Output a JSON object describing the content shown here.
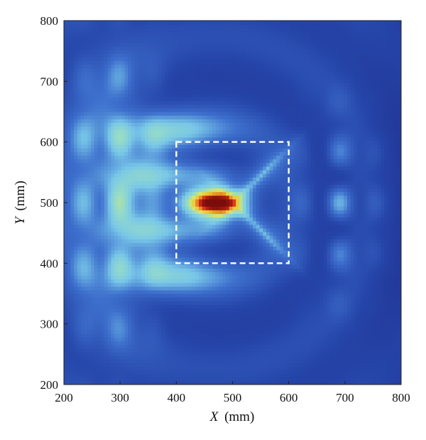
{
  "chart_data": {
    "type": "heatmap",
    "title": "",
    "xlabel_var": "X",
    "xlabel_unit": "(mm)",
    "ylabel_var": "Y",
    "ylabel_unit": "(mm)",
    "xlim": [
      200,
      800
    ],
    "ylim": [
      200,
      800
    ],
    "xticks": [
      200,
      300,
      400,
      500,
      600,
      700,
      800
    ],
    "yticks": [
      200,
      300,
      400,
      500,
      600,
      700,
      800
    ],
    "colormap": "jet",
    "colors": {
      "low": "#1e2f8a",
      "mid_low": "#3d6fc9",
      "mid": "#7ec8e8",
      "mid_high": "#e6e35a",
      "high": "#d51c1c",
      "peak": "#7a0d0d"
    },
    "grid": false,
    "features": {
      "peak": {
        "x": 465,
        "y": 500,
        "level": 1.0
      },
      "left_wave_band": {
        "x_range": [
          215,
          330
        ],
        "y_range": [
          280,
          745
        ]
      },
      "right_wave_cluster": {
        "x_range": [
          630,
          750
        ],
        "y_range": [
          330,
          680
        ]
      }
    },
    "annotations": [
      {
        "type": "dashed-rectangle",
        "color": "#ffffff",
        "x": [
          400,
          600
        ],
        "y": [
          400,
          600
        ]
      }
    ]
  }
}
